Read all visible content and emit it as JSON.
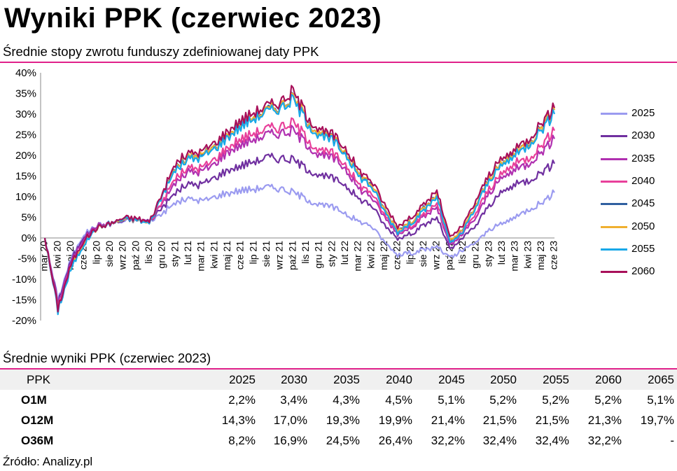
{
  "title": "Wyniki PPK (czerwiec 2023)",
  "subtitle": "Średnie stopy zwrotu funduszy zdefiniowanej daty PPK",
  "accent_color": "#e0218a",
  "chart_data": {
    "type": "line",
    "title": "Średnie stopy zwrotu funduszy zdefiniowanej daty PPK",
    "xlabel": "",
    "ylabel": "",
    "ylim": [
      -20,
      40
    ],
    "yticks": [
      "40%",
      "35%",
      "30%",
      "25%",
      "20%",
      "15%",
      "10%",
      "5%",
      "0%",
      "-5%",
      "-10%",
      "-15%",
      "-20%"
    ],
    "ytick_values": [
      40,
      35,
      30,
      25,
      20,
      15,
      10,
      5,
      0,
      -5,
      -10,
      -15,
      -20
    ],
    "x_months": [
      "mar 20",
      "kwi 20",
      "maj 20",
      "cze 20",
      "lip 20",
      "sie 20",
      "wrz 20",
      "paź 20",
      "lis 20",
      "gru 20",
      "sty 21",
      "lut 21",
      "mar 21",
      "kwi 21",
      "maj 21",
      "cze 21",
      "lip 21",
      "sie 21",
      "wrz 21",
      "paź 21",
      "lis 21",
      "gru 21",
      "sty 22",
      "lut 22",
      "mar 22",
      "kwi 22",
      "maj 22",
      "cze 22",
      "lip 22",
      "sie 22",
      "wrz 22",
      "paź 22",
      "lis 22",
      "gru 22",
      "sty 23",
      "lut 23",
      "mar 23",
      "kwi 23",
      "maj 23",
      "cze 23"
    ],
    "x_tick_labels": [
      "mar 20",
      "kwi 20",
      "maj 20",
      "cze 20",
      "lip 20",
      "sie 20",
      "wrz 20",
      "paź 20",
      "lis 20",
      "gru 20",
      "sty 21",
      "lut 21",
      "mar 21",
      "kwi 21",
      "maj 21",
      "cze 21",
      "lip 21",
      "sie 21",
      "wrz 21",
      "paź 21",
      "lis 21",
      "gru 21",
      "sty 22",
      "lut 22",
      "mar 22",
      "kwi 22",
      "maj 22",
      "cze 22",
      "lip 22",
      "sie 22",
      "wrz 22",
      "paź 22",
      "lis 22",
      "gru 22",
      "sty 23",
      "lut 23",
      "mar 23",
      "kwi 23",
      "maj 23",
      "cze 23"
    ],
    "grid": false,
    "legend_position": "right",
    "series": [
      {
        "name": "2025",
        "color": "#9b9bf0",
        "values": [
          0,
          -15,
          -5,
          1,
          3,
          3.5,
          4,
          4.5,
          4,
          6,
          8.5,
          9.5,
          9,
          10,
          11,
          11.5,
          12,
          12.3,
          12,
          11,
          9.5,
          8,
          7.5,
          6,
          4,
          3,
          -1,
          -4,
          -3.5,
          -3,
          -2,
          -5,
          -3,
          -1,
          2,
          3.5,
          5,
          7,
          8.5,
          11
        ]
      },
      {
        "name": "2030",
        "color": "#7030a0",
        "values": [
          0,
          -15.5,
          -5.5,
          0.5,
          3,
          3.5,
          4.2,
          4.5,
          4,
          7.5,
          11,
          13,
          13,
          14.5,
          16.5,
          17.5,
          18.5,
          19.5,
          19.5,
          19,
          17,
          15,
          14.5,
          13,
          9.5,
          8,
          3,
          0,
          1,
          3,
          5,
          -3,
          0,
          3,
          8,
          11,
          13,
          14,
          16,
          18
        ]
      },
      {
        "name": "2035",
        "color": "#b030b0",
        "values": [
          0,
          -16,
          -6,
          0,
          3,
          3.5,
          4.5,
          4.5,
          4,
          8.5,
          13.5,
          16,
          16,
          18,
          21,
          22.5,
          24,
          25,
          25.5,
          26,
          23,
          20,
          19.5,
          17,
          12,
          10,
          5,
          1,
          2.5,
          5,
          7.5,
          -2,
          1,
          5,
          11,
          14.5,
          16.5,
          18,
          21,
          24
        ]
      },
      {
        "name": "2040",
        "color": "#e8409a",
        "values": [
          0,
          -16.5,
          -6.5,
          -0.5,
          2.5,
          3.5,
          4.5,
          4.5,
          3.8,
          9,
          14.5,
          17,
          17,
          19,
          22,
          24,
          25.5,
          26.5,
          27,
          28,
          24.5,
          21,
          20.5,
          18,
          13,
          11,
          5.5,
          1.5,
          3,
          5.5,
          8.5,
          -1.5,
          1.5,
          6,
          12,
          15.5,
          18,
          19.5,
          22.5,
          26
        ]
      },
      {
        "name": "2045",
        "color": "#3060a0",
        "values": [
          0,
          -17,
          -7,
          -1,
          2.5,
          3.5,
          4.5,
          4.5,
          3.5,
          10.5,
          17,
          19.5,
          20,
          22,
          25,
          27.5,
          29.5,
          31,
          32,
          34,
          29,
          25,
          24,
          21,
          15.5,
          13,
          7,
          2,
          4,
          7,
          10.5,
          -1,
          2,
          8,
          14.5,
          18,
          20.5,
          23,
          27,
          31
        ]
      },
      {
        "name": "2050",
        "color": "#f0b030",
        "values": [
          0,
          -17,
          -7,
          -1,
          2.5,
          3.5,
          4.5,
          4.5,
          3.5,
          10.5,
          17,
          19.5,
          20,
          22,
          25,
          27.5,
          29.5,
          31,
          32,
          34,
          29,
          25,
          24,
          21,
          15.5,
          13,
          7,
          2,
          4,
          7,
          10.5,
          -1,
          2,
          8,
          14.5,
          18,
          20.5,
          23,
          27,
          31
        ]
      },
      {
        "name": "2055",
        "color": "#18a8e8",
        "values": [
          0,
          -17.5,
          -7.5,
          -1.5,
          2.5,
          3.5,
          4.5,
          4.5,
          3.5,
          10.5,
          16.5,
          19,
          19.5,
          21.5,
          24.5,
          27,
          29,
          30.5,
          31.5,
          33.5,
          28.5,
          24.5,
          23.5,
          20.5,
          15,
          12.5,
          6.5,
          1.5,
          3.5,
          6.5,
          10,
          -1.5,
          1.5,
          7.5,
          14,
          17.5,
          20,
          22.5,
          26.5,
          30
        ]
      },
      {
        "name": "2060",
        "color": "#a8105a",
        "values": [
          0,
          -17,
          -6.5,
          -0.5,
          2.5,
          3.5,
          4.8,
          4.8,
          3.8,
          11,
          18,
          20.5,
          21,
          23,
          26,
          28.5,
          30.5,
          32,
          33,
          35.5,
          30,
          26,
          25,
          22,
          16.5,
          14,
          8,
          3,
          5,
          8,
          11.5,
          0,
          3,
          9,
          15.5,
          19,
          21.5,
          24,
          28,
          31.5
        ]
      }
    ]
  },
  "table": {
    "title": "Średnie wyniki PPK (czerwiec 2023)",
    "columns": [
      "PPK",
      "2025",
      "2030",
      "2035",
      "2040",
      "2045",
      "2050",
      "2055",
      "2060",
      "2065"
    ],
    "rows": [
      {
        "label": "O1M",
        "values": [
          "2,2%",
          "3,4%",
          "4,3%",
          "4,5%",
          "5,1%",
          "5,2%",
          "5,2%",
          "5,2%",
          "5,1%"
        ]
      },
      {
        "label": "O12M",
        "values": [
          "14,3%",
          "17,0%",
          "19,3%",
          "19,9%",
          "21,4%",
          "21,5%",
          "21,5%",
          "21,3%",
          "19,7%"
        ]
      },
      {
        "label": "O36M",
        "values": [
          "8,2%",
          "16,9%",
          "24,5%",
          "26,4%",
          "32,2%",
          "32,4%",
          "32,4%",
          "32,2%",
          "-"
        ]
      }
    ]
  },
  "source": "Źródło: Analizy.pl"
}
